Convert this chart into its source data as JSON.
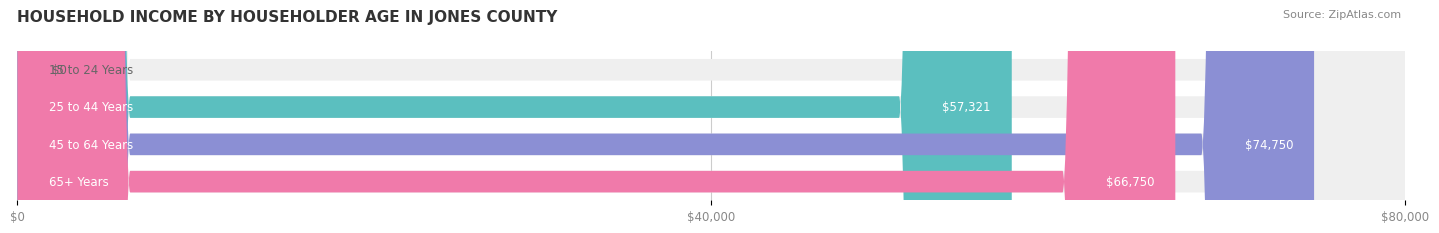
{
  "title": "HOUSEHOLD INCOME BY HOUSEHOLDER AGE IN JONES COUNTY",
  "source": "Source: ZipAtlas.com",
  "categories": [
    "15 to 24 Years",
    "25 to 44 Years",
    "45 to 64 Years",
    "65+ Years"
  ],
  "values": [
    0,
    57321,
    74750,
    66750
  ],
  "bar_colors": [
    "#c9aed6",
    "#5bbfbf",
    "#8b8fd4",
    "#f07aaa"
  ],
  "bar_bg_color": "#efefef",
  "value_labels": [
    "$0",
    "$57,321",
    "$74,750",
    "$66,750"
  ],
  "xlim": [
    0,
    80000
  ],
  "xticks": [
    0,
    40000,
    80000
  ],
  "xticklabels": [
    "$0",
    "$40,000",
    "$80,000"
  ],
  "background_color": "#ffffff",
  "bar_height": 0.58,
  "title_fontsize": 11,
  "label_fontsize": 8.5,
  "tick_fontsize": 8.5,
  "source_fontsize": 8
}
